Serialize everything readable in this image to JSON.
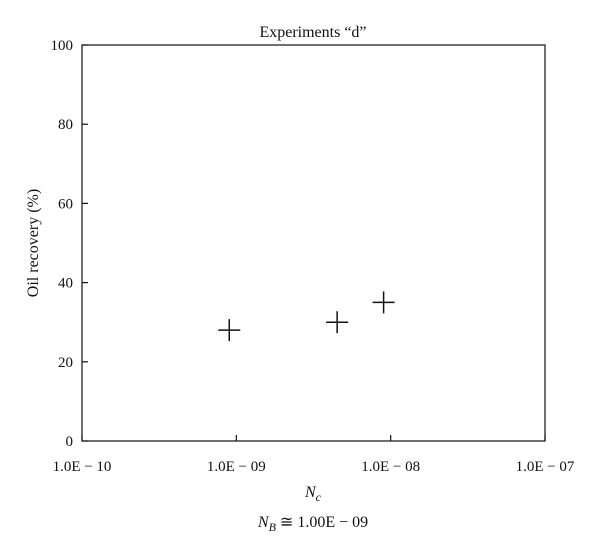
{
  "chart_data": {
    "type": "scatter",
    "title": "Experiments “d”",
    "ylabel": "Oil recovery (%)",
    "xlabel": "N_c",
    "xlabel_main": "N",
    "xlabel_sub": "c",
    "note": "N_B ≅ 1.00E − 09",
    "note_main": "N",
    "note_sub": "B",
    "note_rest": " ≅ 1.00E − 09",
    "x_scale": "log",
    "xlim": [
      1e-10,
      1e-07
    ],
    "ylim": [
      0,
      100
    ],
    "x_ticks": [
      {
        "value": 1e-10,
        "label": "1.0E − 10"
      },
      {
        "value": 1e-09,
        "label": "1.0E − 09"
      },
      {
        "value": 1e-08,
        "label": "1.0E − 08"
      },
      {
        "value": 1e-07,
        "label": "1.0E − 07"
      }
    ],
    "y_ticks": [
      {
        "value": 0,
        "label": "0"
      },
      {
        "value": 20,
        "label": "20"
      },
      {
        "value": 40,
        "label": "40"
      },
      {
        "value": 60,
        "label": "60"
      },
      {
        "value": 80,
        "label": "80"
      },
      {
        "value": 100,
        "label": "100"
      }
    ],
    "grid": false,
    "marker": "plus",
    "points": [
      {
        "x": 9e-10,
        "y": 28
      },
      {
        "x": 4.5e-09,
        "y": 30
      },
      {
        "x": 9e-09,
        "y": 35
      }
    ]
  }
}
